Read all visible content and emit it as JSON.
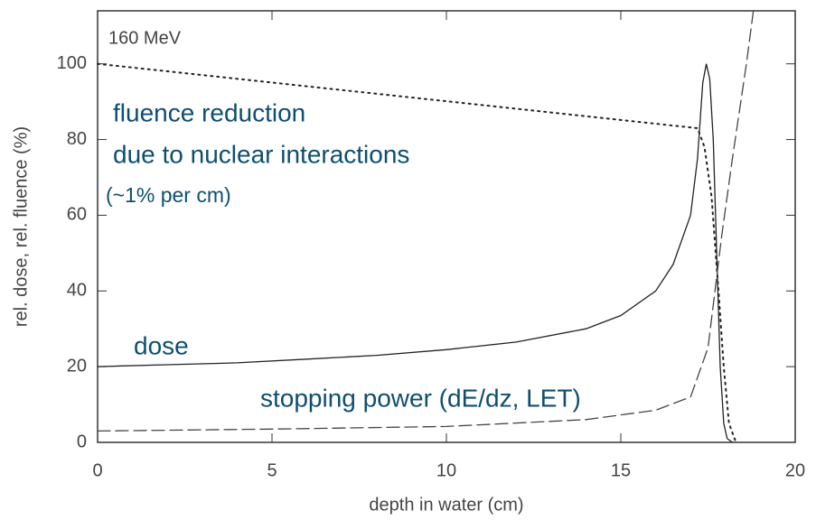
{
  "chart_data": {
    "type": "line",
    "xlabel": "depth in water (cm)",
    "ylabel": "rel. dose, rel. fluence (%)",
    "annotations": [
      "160 MeV",
      "fluence reduction",
      "due to nuclear interactions",
      "(~1% per cm)",
      "dose",
      "stopping power (dE/dz, LET)"
    ],
    "xlim": [
      0,
      20
    ],
    "xticks": [
      0,
      5,
      10,
      15,
      20
    ],
    "ylim": [
      0,
      114
    ],
    "yticks": [
      0,
      20,
      40,
      60,
      80,
      100
    ],
    "series": [
      {
        "style": "solid",
        "color": "#222222",
        "x": [
          0,
          2,
          4,
          6,
          8,
          10,
          12,
          14,
          15,
          16,
          16.5,
          17,
          17.2,
          17.35,
          17.45,
          17.55,
          17.65,
          17.75,
          17.85,
          17.95,
          18.05,
          18.2
        ],
        "values": [
          20,
          20.5,
          21,
          22,
          23,
          24.5,
          26.5,
          30,
          33.5,
          40,
          47,
          60,
          75,
          95,
          100,
          96,
          80,
          50,
          20,
          5,
          1,
          0
        ]
      },
      {
        "style": "dotted",
        "color": "#222222",
        "x": [
          0,
          17.2,
          17.4,
          17.6,
          17.8,
          17.95,
          18.1,
          18.3
        ],
        "values": [
          100,
          83,
          78,
          65,
          40,
          20,
          5,
          0
        ]
      },
      {
        "style": "dashed",
        "color": "#444444",
        "x": [
          0,
          5,
          10,
          14,
          16,
          17,
          17.5,
          17.7,
          17.9,
          18.2,
          18.6,
          18.8
        ],
        "values": [
          3,
          3.5,
          4.2,
          6,
          8.5,
          12,
          25,
          40,
          55,
          75,
          100,
          114
        ]
      }
    ]
  }
}
